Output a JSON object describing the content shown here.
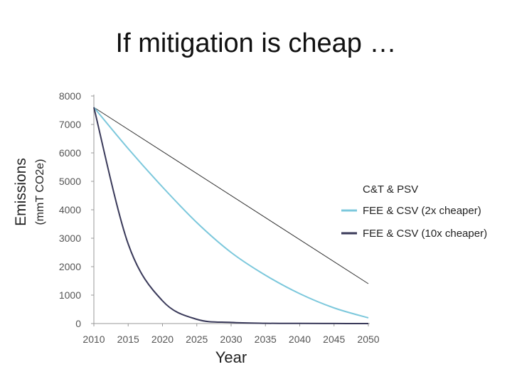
{
  "title": "If mitigation is cheap …",
  "chart_data": {
    "type": "line",
    "title": "If mitigation is cheap …",
    "xlabel": "Year",
    "ylabel": "Emissions",
    "ylabel_unit": "(mmT CO2e)",
    "xlim": [
      2010,
      2050
    ],
    "ylim": [
      0,
      8000
    ],
    "x_ticks": [
      2010,
      2015,
      2020,
      2025,
      2030,
      2035,
      2040,
      2045,
      2050
    ],
    "y_ticks": [
      0,
      1000,
      2000,
      3000,
      4000,
      5000,
      6000,
      7000,
      8000
    ],
    "grid": false,
    "legend_position": "right",
    "x": [
      2010,
      2015,
      2020,
      2025,
      2030,
      2035,
      2040,
      2045,
      2050
    ],
    "series": [
      {
        "name": "C&T & PSV",
        "color": "#333333",
        "values": [
          7600,
          6825,
          6050,
          5275,
          4500,
          3725,
          2950,
          2175,
          1400
        ]
      },
      {
        "name": "FEE & CSV (2x cheaper)",
        "color": "#7cc8dc",
        "values": [
          7600,
          6150,
          4800,
          3550,
          2500,
          1700,
          1050,
          550,
          200
        ]
      },
      {
        "name": "FEE & CSV (10x cheaper)",
        "color": "#3a3a5a",
        "values": [
          7600,
          2800,
          800,
          150,
          40,
          10,
          5,
          2,
          0
        ]
      }
    ]
  }
}
